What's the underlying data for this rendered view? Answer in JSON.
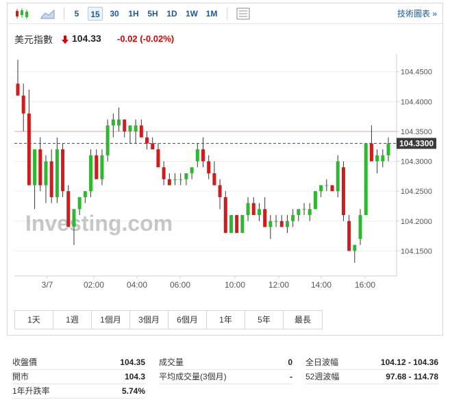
{
  "toolbar": {
    "intervals": [
      "5",
      "15",
      "30",
      "1H",
      "5H",
      "1D",
      "1W",
      "1M"
    ],
    "selected_interval": "15",
    "tech_link": "技術圖表 »"
  },
  "quote": {
    "name": "美元指數",
    "price": "104.33",
    "change": "-0.02",
    "change_pct": "(-0.02%)",
    "direction": "down",
    "down_color": "#d60000"
  },
  "chart_data": {
    "type": "candlestick",
    "watermark": "Investing.com",
    "x_tick_labels": [
      "3/7",
      "02:00",
      "04:00",
      "06:00",
      "10:00",
      "12:00",
      "14:00",
      "16:00"
    ],
    "y_tick_labels": [
      "104.4500",
      "104.4000",
      "104.3500",
      "104.3000",
      "104.2500",
      "104.2000",
      "104.1500"
    ],
    "ylim": [
      104.108,
      104.468
    ],
    "current_price_label": "104.3300",
    "current_price": 104.33,
    "reference_line": 104.35,
    "up_color": "#2eb82e",
    "down_color": "#d01c1c",
    "candles": [
      {
        "o": 104.43,
        "h": 104.47,
        "l": 104.41,
        "c": 104.41
      },
      {
        "o": 104.41,
        "h": 104.43,
        "l": 104.35,
        "c": 104.38
      },
      {
        "o": 104.38,
        "h": 104.42,
        "l": 104.26,
        "c": 104.26
      },
      {
        "o": 104.26,
        "h": 104.32,
        "l": 104.22,
        "c": 104.32
      },
      {
        "o": 104.32,
        "h": 104.34,
        "l": 104.25,
        "c": 104.26
      },
      {
        "o": 104.26,
        "h": 104.31,
        "l": 104.23,
        "c": 104.3
      },
      {
        "o": 104.3,
        "h": 104.32,
        "l": 104.23,
        "c": 104.24
      },
      {
        "o": 104.24,
        "h": 104.34,
        "l": 104.23,
        "c": 104.32
      },
      {
        "o": 104.32,
        "h": 104.33,
        "l": 104.24,
        "c": 104.25
      },
      {
        "o": 104.25,
        "h": 104.26,
        "l": 104.19,
        "c": 104.19
      },
      {
        "o": 104.19,
        "h": 104.22,
        "l": 104.16,
        "c": 104.22
      },
      {
        "o": 104.22,
        "h": 104.24,
        "l": 104.21,
        "c": 104.24
      },
      {
        "o": 104.24,
        "h": 104.25,
        "l": 104.23,
        "c": 104.25
      },
      {
        "o": 104.25,
        "h": 104.32,
        "l": 104.24,
        "c": 104.31
      },
      {
        "o": 104.31,
        "h": 104.32,
        "l": 104.27,
        "c": 104.27
      },
      {
        "o": 104.27,
        "h": 104.32,
        "l": 104.26,
        "c": 104.31
      },
      {
        "o": 104.31,
        "h": 104.37,
        "l": 104.3,
        "c": 104.36
      },
      {
        "o": 104.36,
        "h": 104.38,
        "l": 104.34,
        "c": 104.37
      },
      {
        "o": 104.36,
        "h": 104.39,
        "l": 104.35,
        "c": 104.37
      },
      {
        "o": 104.37,
        "h": 104.37,
        "l": 104.34,
        "c": 104.35
      },
      {
        "o": 104.35,
        "h": 104.36,
        "l": 104.33,
        "c": 104.36
      },
      {
        "o": 104.35,
        "h": 104.37,
        "l": 104.33,
        "c": 104.36
      },
      {
        "o": 104.36,
        "h": 104.37,
        "l": 104.34,
        "c": 104.34
      },
      {
        "o": 104.34,
        "h": 104.35,
        "l": 104.32,
        "c": 104.33
      },
      {
        "o": 104.33,
        "h": 104.34,
        "l": 104.32,
        "c": 104.32
      },
      {
        "o": 104.32,
        "h": 104.33,
        "l": 104.29,
        "c": 104.29
      },
      {
        "o": 104.29,
        "h": 104.3,
        "l": 104.26,
        "c": 104.27
      },
      {
        "o": 104.27,
        "h": 104.28,
        "l": 104.26,
        "c": 104.26
      },
      {
        "o": 104.27,
        "h": 104.28,
        "l": 104.26,
        "c": 104.27
      },
      {
        "o": 104.27,
        "h": 104.28,
        "l": 104.26,
        "c": 104.27
      },
      {
        "o": 104.27,
        "h": 104.28,
        "l": 104.26,
        "c": 104.28
      },
      {
        "o": 104.28,
        "h": 104.29,
        "l": 104.27,
        "c": 104.29
      },
      {
        "o": 104.3,
        "h": 104.33,
        "l": 104.29,
        "c": 104.32
      },
      {
        "o": 104.32,
        "h": 104.34,
        "l": 104.29,
        "c": 104.3
      },
      {
        "o": 104.3,
        "h": 104.31,
        "l": 104.27,
        "c": 104.28
      },
      {
        "o": 104.28,
        "h": 104.3,
        "l": 104.26,
        "c": 104.26
      },
      {
        "o": 104.26,
        "h": 104.27,
        "l": 104.22,
        "c": 104.24
      },
      {
        "o": 104.24,
        "h": 104.25,
        "l": 104.18,
        "c": 104.18
      },
      {
        "o": 104.18,
        "h": 104.21,
        "l": 104.18,
        "c": 104.21
      },
      {
        "o": 104.21,
        "h": 104.21,
        "l": 104.18,
        "c": 104.18
      },
      {
        "o": 104.18,
        "h": 104.21,
        "l": 104.18,
        "c": 104.21
      },
      {
        "o": 104.21,
        "h": 104.24,
        "l": 104.2,
        "c": 104.23
      },
      {
        "o": 104.23,
        "h": 104.24,
        "l": 104.21,
        "c": 104.21
      },
      {
        "o": 104.21,
        "h": 104.23,
        "l": 104.2,
        "c": 104.22
      },
      {
        "o": 104.22,
        "h": 104.24,
        "l": 104.19,
        "c": 104.19
      },
      {
        "o": 104.19,
        "h": 104.21,
        "l": 104.17,
        "c": 104.2
      },
      {
        "o": 104.2,
        "h": 104.21,
        "l": 104.19,
        "c": 104.2
      },
      {
        "o": 104.2,
        "h": 104.21,
        "l": 104.19,
        "c": 104.19
      },
      {
        "o": 104.19,
        "h": 104.21,
        "l": 104.18,
        "c": 104.2
      },
      {
        "o": 104.2,
        "h": 104.22,
        "l": 104.19,
        "c": 104.21
      },
      {
        "o": 104.21,
        "h": 104.22,
        "l": 104.2,
        "c": 104.22
      },
      {
        "o": 104.22,
        "h": 104.23,
        "l": 104.21,
        "c": 104.22
      },
      {
        "o": 104.21,
        "h": 104.23,
        "l": 104.2,
        "c": 104.22
      },
      {
        "o": 104.22,
        "h": 104.25,
        "l": 104.22,
        "c": 104.25
      },
      {
        "o": 104.25,
        "h": 104.26,
        "l": 104.24,
        "c": 104.26
      },
      {
        "o": 104.26,
        "h": 104.27,
        "l": 104.25,
        "c": 104.26
      },
      {
        "o": 104.26,
        "h": 104.26,
        "l": 104.25,
        "c": 104.25
      },
      {
        "o": 104.25,
        "h": 104.31,
        "l": 104.24,
        "c": 104.3
      },
      {
        "o": 104.29,
        "h": 104.3,
        "l": 104.2,
        "c": 104.21
      },
      {
        "o": 104.2,
        "h": 104.21,
        "l": 104.15,
        "c": 104.15
      },
      {
        "o": 104.15,
        "h": 104.16,
        "l": 104.13,
        "c": 104.16
      },
      {
        "o": 104.17,
        "h": 104.22,
        "l": 104.16,
        "c": 104.21
      },
      {
        "o": 104.21,
        "h": 104.33,
        "l": 104.21,
        "c": 104.33
      },
      {
        "o": 104.33,
        "h": 104.36,
        "l": 104.3,
        "c": 104.3
      },
      {
        "o": 104.3,
        "h": 104.32,
        "l": 104.28,
        "c": 104.31
      },
      {
        "o": 104.3,
        "h": 104.32,
        "l": 104.29,
        "c": 104.31
      },
      {
        "o": 104.31,
        "h": 104.34,
        "l": 104.3,
        "c": 104.33
      }
    ]
  },
  "ranges": [
    "1天",
    "1週",
    "1個月",
    "3個月",
    "6個月",
    "1年",
    "5年",
    "最長"
  ],
  "stats": {
    "col1": [
      {
        "label": "收盤價",
        "value": "104.35"
      },
      {
        "label": "開市",
        "value": "104.3"
      },
      {
        "label": "1年升跌率",
        "value": "5.74%"
      }
    ],
    "col2": [
      {
        "label": "成交量",
        "value": "0"
      },
      {
        "label": "平均成交量(3個月)",
        "value": "-"
      }
    ],
    "col3": [
      {
        "label": "全日波幅",
        "value": "104.12 - 104.36"
      },
      {
        "label": "52週波幅",
        "value": "97.68 - 114.78"
      }
    ]
  }
}
